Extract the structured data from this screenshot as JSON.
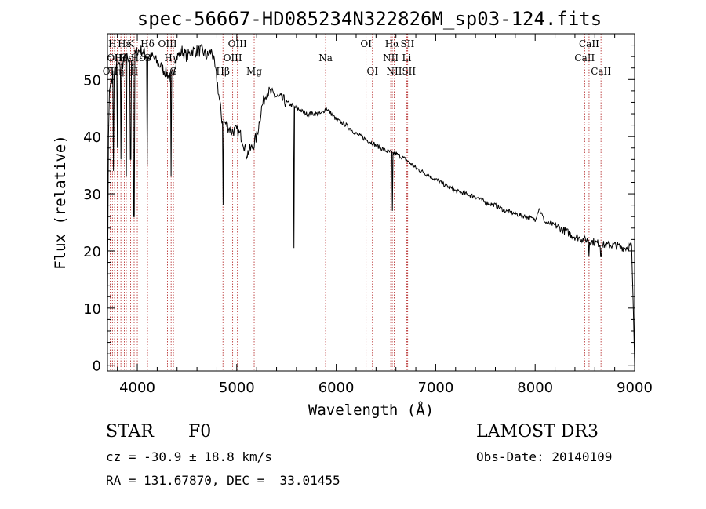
{
  "chart_data": {
    "type": "line",
    "title": "spec-56667-HD085234N322826M_sp03-124.fits",
    "xlabel": "Wavelength (Å)",
    "ylabel": "Flux (relative)",
    "xlim": [
      3700,
      9000
    ],
    "ylim": [
      -1,
      58
    ],
    "xticks": [
      4000,
      5000,
      6000,
      7000,
      8000,
      9000
    ],
    "yticks": [
      0,
      10,
      20,
      30,
      40,
      50
    ],
    "grid": false,
    "series": [
      {
        "name": "flux",
        "x": [
          3700,
          3710,
          3720,
          3740,
          3760,
          3780,
          3800,
          3830,
          3860,
          3890,
          3930,
          3970,
          4000,
          4050,
          4100,
          4150,
          4200,
          4250,
          4300,
          4340,
          4400,
          4450,
          4500,
          4550,
          4600,
          4650,
          4700,
          4750,
          4800,
          4850,
          4900,
          4950,
          5000,
          5050,
          5100,
          5150,
          5200,
          5250,
          5300,
          5350,
          5400,
          5450,
          5500,
          5550,
          5600,
          5650,
          5700,
          5750,
          5800,
          5850,
          5900,
          5950,
          6000,
          6100,
          6200,
          6300,
          6400,
          6500,
          6600,
          6700,
          6800,
          6900,
          7000,
          7100,
          7200,
          7300,
          7400,
          7500,
          7600,
          7700,
          7800,
          7900,
          8000,
          8040,
          8100,
          8200,
          8300,
          8400,
          8500,
          8600,
          8700,
          8800,
          8900,
          8970,
          8990,
          9000
        ],
        "values": [
          9,
          40,
          48,
          50,
          51,
          52,
          53,
          52,
          53,
          54,
          52,
          54,
          55,
          55,
          54,
          54,
          53,
          52,
          51,
          50,
          54,
          55,
          54,
          55,
          55,
          55,
          54,
          55,
          50,
          43,
          42,
          41,
          41,
          40,
          37,
          38,
          40,
          45,
          48,
          47.5,
          47,
          46.5,
          46,
          45.5,
          45,
          44.5,
          44,
          44,
          44,
          44,
          45,
          44,
          43,
          42,
          40.5,
          39.5,
          38.5,
          37.5,
          37,
          36,
          34.5,
          33.5,
          32.5,
          31.5,
          30.5,
          30,
          29.5,
          28.5,
          28,
          27,
          26.5,
          26,
          25.5,
          27.5,
          25,
          24.5,
          23.5,
          22.5,
          22,
          21.5,
          21,
          21,
          20.5,
          21,
          8,
          0
        ]
      }
    ],
    "absorption_lines": [
      {
        "x": 3760,
        "depth": 34
      },
      {
        "x": 3798,
        "depth": 38
      },
      {
        "x": 3835,
        "depth": 36
      },
      {
        "x": 3889,
        "depth": 33
      },
      {
        "x": 3933,
        "depth": 36
      },
      {
        "x": 3968,
        "depth": 26
      },
      {
        "x": 4102,
        "depth": 35
      },
      {
        "x": 4340,
        "depth": 33
      },
      {
        "x": 4861,
        "depth": 28
      },
      {
        "x": 5172,
        "depth": 38
      },
      {
        "x": 5577,
        "depth": 20.5
      },
      {
        "x": 6563,
        "depth": 27
      },
      {
        "x": 8542,
        "depth": 19
      },
      {
        "x": 8662,
        "depth": 19
      }
    ],
    "line_markers": [
      {
        "x": 3727,
        "label": "OII",
        "row": 2
      },
      {
        "x": 3750,
        "label": "H",
        "row": 0
      },
      {
        "x": 3771,
        "label": "OII",
        "row": 1
      },
      {
        "x": 3798,
        "label": "Hη",
        "row": 2
      },
      {
        "x": 3835,
        "label": "Hζ",
        "row": 1
      },
      {
        "x": 3869,
        "label": "Hε",
        "row": 0
      },
      {
        "x": 3889,
        "label": "Hε",
        "row": 1
      },
      {
        "x": 3933,
        "label": "K",
        "row": 0
      },
      {
        "x": 3968,
        "label": "H",
        "row": 2
      },
      {
        "x": 4000,
        "label": "Hε",
        "row": 1
      },
      {
        "x": 4102,
        "label": "Hδ",
        "row": 0
      },
      {
        "x": 4100,
        "label": "G",
        "row": 1
      },
      {
        "x": 4304,
        "label": "OIII",
        "row": 0
      },
      {
        "x": 4340,
        "label": "Hγ",
        "row": 1
      },
      {
        "x": 4363,
        "label": "G",
        "row": 2
      },
      {
        "x": 4861,
        "label": "Hβ",
        "row": 2
      },
      {
        "x": 4959,
        "label": "OIII",
        "row": 1
      },
      {
        "x": 5007,
        "label": "OIII",
        "row": 0
      },
      {
        "x": 5175,
        "label": "Mg",
        "row": 2
      },
      {
        "x": 5893,
        "label": "Na",
        "row": 1
      },
      {
        "x": 6300,
        "label": "OI",
        "row": 0
      },
      {
        "x": 6364,
        "label": "OI",
        "row": 2
      },
      {
        "x": 6548,
        "label": "NII",
        "row": 1
      },
      {
        "x": 6563,
        "label": "Hα",
        "row": 0
      },
      {
        "x": 6583,
        "label": "NII",
        "row": 2
      },
      {
        "x": 6708,
        "label": "Li",
        "row": 1
      },
      {
        "x": 6716,
        "label": "SII",
        "row": 0
      },
      {
        "x": 6731,
        "label": "SII",
        "row": 2
      },
      {
        "x": 8498,
        "label": "CaII",
        "row": 1
      },
      {
        "x": 8542,
        "label": "CaII",
        "row": 0
      },
      {
        "x": 8662,
        "label": "CaII",
        "row": 2
      }
    ]
  },
  "info": {
    "object_class": "STAR",
    "subclass": "F0",
    "redshift": "cz = -30.9 ± 18.8 km/s",
    "coords": "RA = 131.67870, DEC =  33.01455",
    "survey": "LAMOST DR3",
    "obs_date": "Obs-Date: 20140109"
  },
  "colors": {
    "line_marker": "#b22222",
    "spectrum": "#000000"
  }
}
